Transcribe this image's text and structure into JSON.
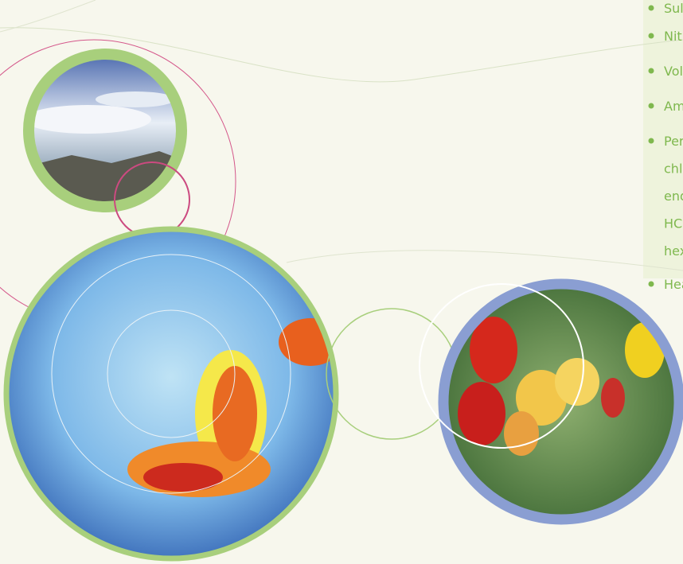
{
  "list": [
    {
      "lines": [
        "Sulp"
      ]
    },
    {
      "lines": [
        "Nitro"
      ]
    },
    {
      "lines": [
        "Volc"
      ]
    },
    {
      "lines": [
        "Amm"
      ]
    },
    {
      "lines": [
        "Pers",
        "chlo",
        "end",
        "HCH",
        "hexa"
      ]
    },
    {
      "lines": [
        "Hea"
      ]
    }
  ]
}
